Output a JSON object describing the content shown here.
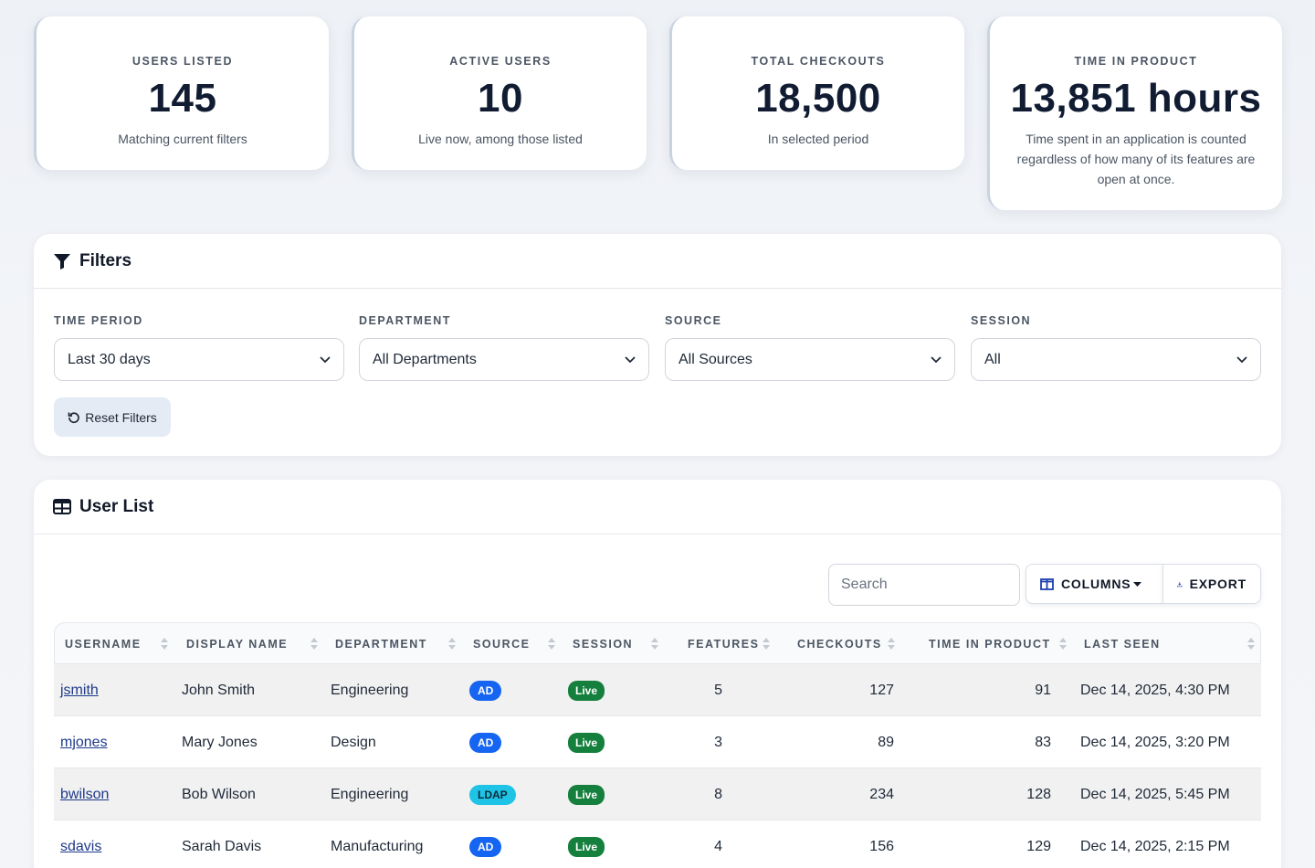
{
  "stats": [
    {
      "label": "USERS LISTED",
      "value": "145",
      "sub": "Matching current filters"
    },
    {
      "label": "ACTIVE USERS",
      "value": "10",
      "sub": "Live now, among those listed"
    },
    {
      "label": "TOTAL CHECKOUTS",
      "value": "18,500",
      "sub": "In selected period"
    },
    {
      "label": "TIME IN PRODUCT",
      "value": "13,851 hours",
      "sub": "Time spent in an application is counted regardless of how many of its features are open at once."
    }
  ],
  "filters": {
    "title": "Filters",
    "time_period": {
      "label": "TIME PERIOD",
      "value": "Last 30 days"
    },
    "department": {
      "label": "DEPARTMENT",
      "value": "All Departments"
    },
    "source": {
      "label": "SOURCE",
      "value": "All Sources"
    },
    "session": {
      "label": "SESSION",
      "value": "All"
    },
    "reset_label": "Reset Filters"
  },
  "user_list": {
    "title": "User List",
    "search_placeholder": "Search",
    "columns_label": "COLUMNS",
    "export_label": "EXPORT",
    "headers": {
      "username": "USERNAME",
      "display_name": "DISPLAY NAME",
      "department": "DEPARTMENT",
      "source": "SOURCE",
      "session": "SESSION",
      "features": "FEATURES",
      "checkouts": "CHECKOUTS",
      "time_in_product": "TIME IN PRODUCT",
      "last_seen": "LAST SEEN"
    },
    "rows": [
      {
        "username": "jsmith",
        "display_name": "John Smith",
        "department": "Engineering",
        "source": "AD",
        "session": "Live",
        "features": "5",
        "checkouts": "127",
        "time_in_product": "91",
        "last_seen": "Dec 14, 2025, 4:30 PM"
      },
      {
        "username": "mjones",
        "display_name": "Mary Jones",
        "department": "Design",
        "source": "AD",
        "session": "Live",
        "features": "3",
        "checkouts": "89",
        "time_in_product": "83",
        "last_seen": "Dec 14, 2025, 3:20 PM"
      },
      {
        "username": "bwilson",
        "display_name": "Bob Wilson",
        "department": "Engineering",
        "source": "LDAP",
        "session": "Live",
        "features": "8",
        "checkouts": "234",
        "time_in_product": "128",
        "last_seen": "Dec 14, 2025, 5:45 PM"
      },
      {
        "username": "sdavis",
        "display_name": "Sarah Davis",
        "department": "Manufacturing",
        "source": "AD",
        "session": "Live",
        "features": "4",
        "checkouts": "156",
        "time_in_product": "129",
        "last_seen": "Dec 14, 2025, 2:15 PM"
      }
    ]
  },
  "colors": {
    "ad_badge": "#1565f2",
    "ldap_badge": "#1ec3e5",
    "live_badge": "#15803d",
    "title_text": "#111c33"
  }
}
